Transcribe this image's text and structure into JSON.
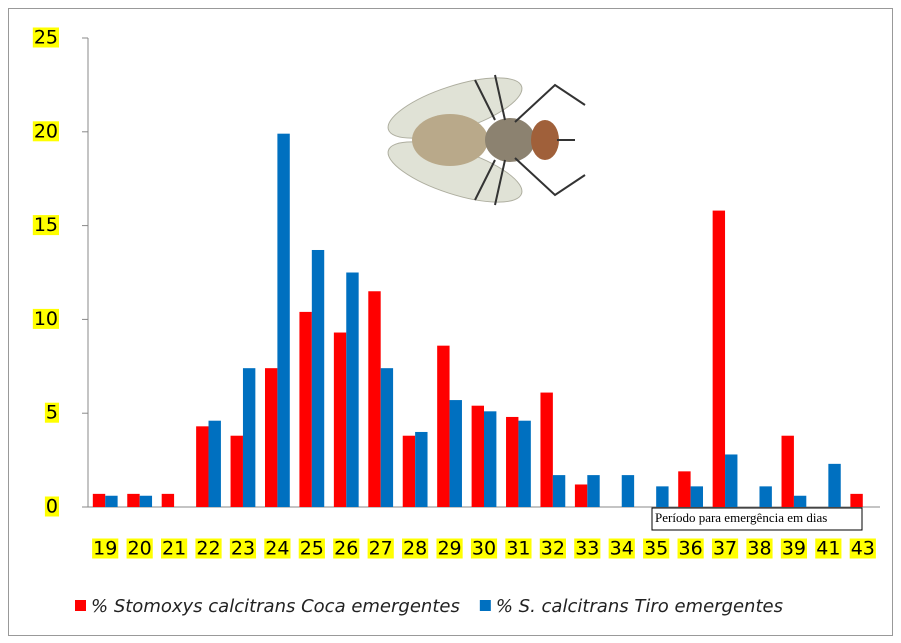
{
  "chart_data": {
    "type": "bar",
    "xlabel": "Período para emergência em dias",
    "categories": [
      "19",
      "20",
      "21",
      "22",
      "23",
      "24",
      "25",
      "26",
      "27",
      "28",
      "29",
      "30",
      "31",
      "32",
      "33",
      "34",
      "35",
      "36",
      "37",
      "38",
      "39",
      "41",
      "43"
    ],
    "series": [
      {
        "name": "% Stomoxys calcitrans Coca emergentes",
        "color": "#ff0000",
        "values": [
          0.7,
          0.7,
          0.7,
          4.3,
          3.8,
          7.4,
          10.4,
          9.3,
          11.5,
          3.8,
          8.6,
          5.4,
          4.8,
          6.1,
          1.2,
          0,
          0,
          1.9,
          15.8,
          0,
          3.8,
          0,
          0.7
        ]
      },
      {
        "name": "% S. calcitrans Tiro emergentes",
        "color": "#0070c0",
        "values": [
          0.6,
          0.6,
          0,
          4.6,
          7.4,
          19.9,
          13.7,
          12.5,
          7.4,
          4.0,
          5.7,
          5.1,
          4.6,
          1.7,
          1.7,
          1.7,
          1.1,
          1.1,
          2.8,
          1.1,
          0.6,
          2.3,
          0
        ]
      }
    ],
    "ylim": [
      0,
      25
    ],
    "yticks": [
      0,
      5,
      10,
      15,
      20,
      25
    ],
    "label_highlight": "#ffff00"
  }
}
